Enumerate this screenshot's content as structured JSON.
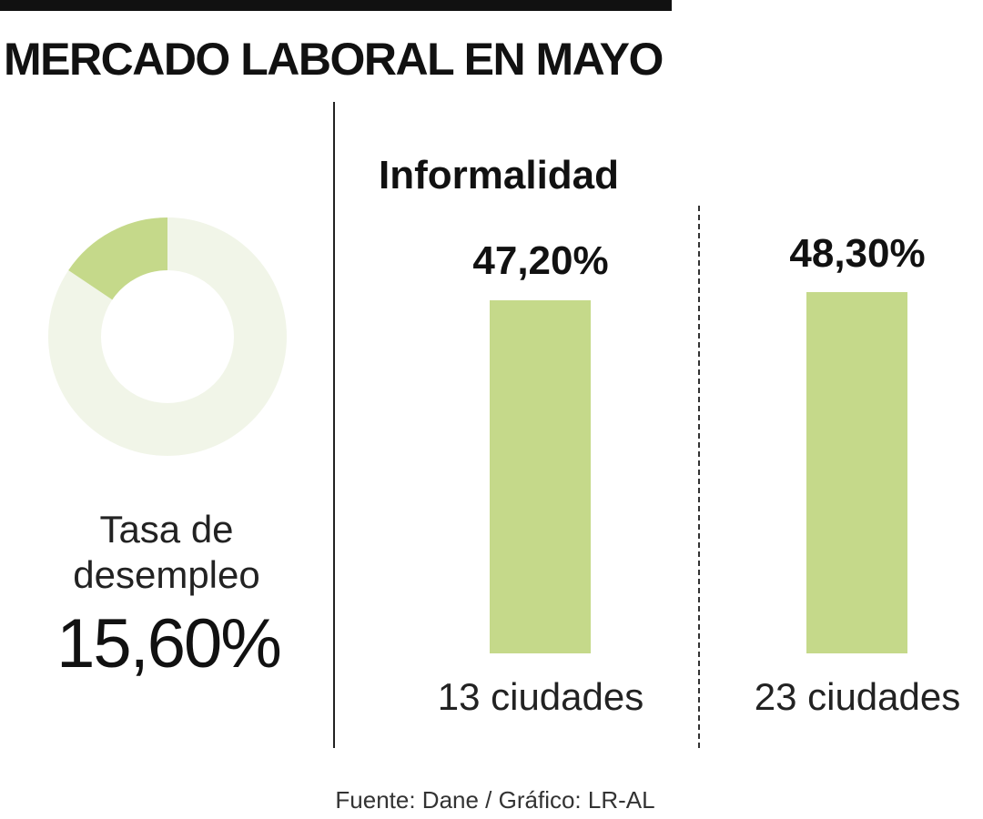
{
  "title": "MERCADO LABORAL EN MAYO",
  "colors": {
    "bar": "#c5d98a",
    "donut_fill": "#c5d98a",
    "donut_track": "#f1f5e8",
    "text": "#111111"
  },
  "source": "Fuente: Dane / Gráfico: LR-AL",
  "chart_data": [
    {
      "type": "pie",
      "variant": "donut",
      "label_line1": "Tasa de",
      "label_line2": "desempleo",
      "value_label": "15,60%",
      "value": 15.6,
      "max": 100
    },
    {
      "type": "bar",
      "title": "Informalidad",
      "categories": [
        "13 ciudades",
        "23 ciudades"
      ],
      "values": [
        47.2,
        48.3
      ],
      "value_labels": [
        "47,20%",
        "48,30%"
      ],
      "ylim": [
        0,
        48.3
      ]
    }
  ]
}
